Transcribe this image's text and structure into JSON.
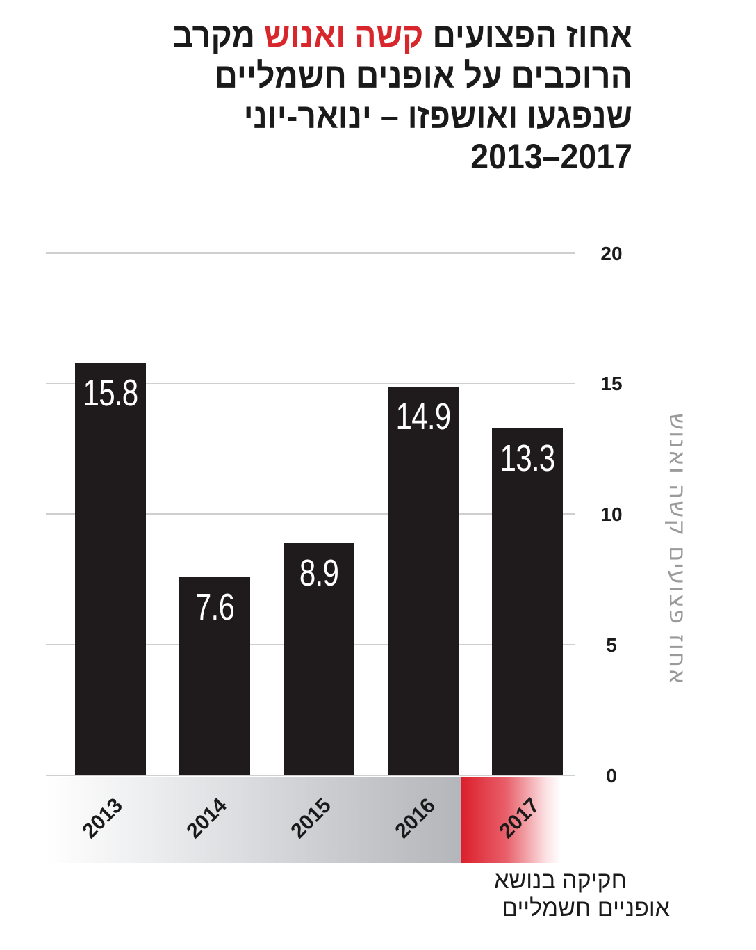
{
  "title": {
    "line1_pre": "אחוז הפצועים ",
    "line1_highlight": "קשה ואנוש",
    "line1_post": " מקרב",
    "line2": "הרוכבים על אופנים חשמליים",
    "line3": "שנפגעו ואושפזו – ינואר-יוני",
    "line4": "2013–2017",
    "highlight_color": "#d8262d"
  },
  "annotation": {
    "line1": "חקיקה בנושא",
    "line2": "אופניים חשמליים"
  },
  "colors": {
    "bar": "#1f1b1c",
    "gridline": "#cfcfcf",
    "band_gray": "#b3b6ba",
    "band_red": "#dc1f2c",
    "axis_label": "#9a9a9a"
  },
  "chart_data": {
    "type": "bar",
    "title": "אחוז הפצועים קשה ואנוש מקרב הרוכבים על אופנים חשמליים שנפגעו ואושפזו – ינואר-יוני 2013–2017",
    "categories": [
      "2013",
      "2014",
      "2015",
      "2016",
      "2017"
    ],
    "values": [
      15.8,
      7.6,
      8.9,
      14.9,
      13.3
    ],
    "value_labels": [
      "15.8",
      "7.6",
      "8.9",
      "14.9",
      "13.3"
    ],
    "xlabel": "",
    "ylabel": "אחוז פצועים קשה ואנוש",
    "ylim": [
      0,
      20
    ],
    "yticks": [
      "0",
      "5",
      "10",
      "15",
      "20"
    ],
    "y_axis_position": "right",
    "grid": true,
    "highlighted_category": "2017",
    "annotation": "חקיקה בנושא אופניים חשמליים"
  }
}
